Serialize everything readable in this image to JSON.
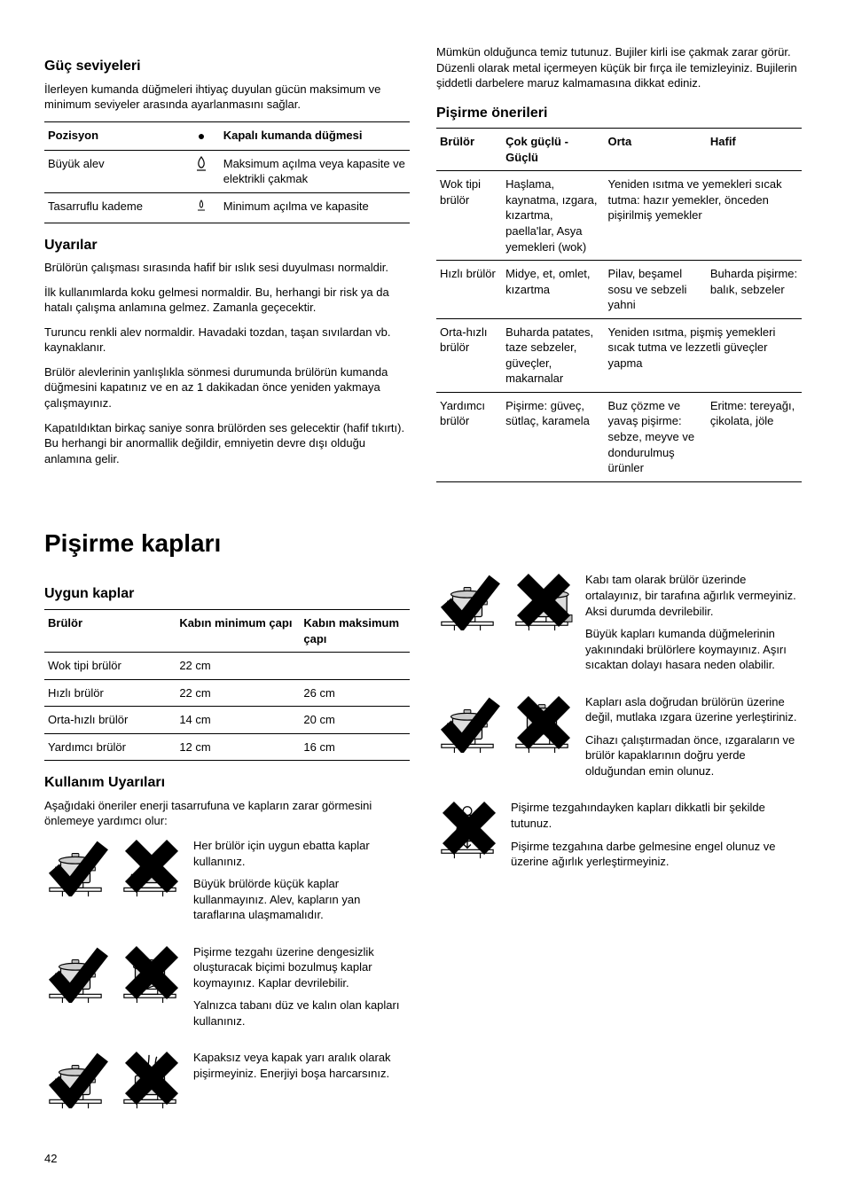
{
  "section1": {
    "heading": "Güç seviyeleri",
    "intro": "İlerleyen kumanda düğmeleri ihtiyaç duyulan gücün maksimum ve minimum seviyeler arasında ayarlanmasını sağlar.",
    "table": {
      "rows": [
        {
          "pos": "Pozisyon",
          "desc": "Kapalı kumanda düğmesi"
        },
        {
          "pos": "Büyük alev",
          "desc": "Maksimum açılma veya kapasite ve elektrikli çakmak"
        },
        {
          "pos": "Tasarruflu kademe",
          "desc": "Minimum açılma ve kapasite"
        }
      ]
    }
  },
  "warnings": {
    "heading": "Uyarılar",
    "items": [
      "Brülörün çalışması sırasında hafif bir ıslık sesi duyulması normaldir.",
      "İlk kullanımlarda koku gelmesi normaldir. Bu, herhangi bir risk ya da hatalı çalışma anlamına gelmez. Zamanla geçecektir.",
      "Turuncu renkli alev normaldir. Havadaki tozdan, taşan sıvılardan vb. kaynaklanır.",
      "Brülör alevlerinin yanlışlıkla sönmesi durumunda brülörün kumanda düğmesini kapatınız ve en az 1 dakikadan önce yeniden yakmaya çalışmayınız.",
      "Kapatıldıktan birkaç saniye sonra brülörden ses gelecektir (hafif tıkırtı). Bu herhangi bir anormallik değildir, emniyetin devre dışı olduğu anlamına gelir."
    ]
  },
  "clean": {
    "p": "Mümkün olduğunca temiz tutunuz. Bujiler kirli ise çakmak zarar görür. Düzenli olarak metal içermeyen küçük bir fırça ile temizleyiniz. Bujilerin şiddetli darbelere maruz kalmamasına dikkat ediniz."
  },
  "recommend": {
    "heading": "Pişirme önerileri",
    "headers": [
      "Brülör",
      "Çok güçlü - Güçlü",
      "Orta",
      "Hafif"
    ],
    "rows": [
      {
        "c1": "Wok tipi brülör",
        "c2": "Haşlama, kaynatma, ızgara, kızartma, paella'lar, Asya yemekleri (wok)",
        "c3": "Yeniden ısıtma ve yemekleri sıcak tutma: hazır yemekler, önceden pişirilmiş yemekler",
        "c4": "",
        "merge34": true
      },
      {
        "c1": "Hızlı brülör",
        "c2": "Midye, et, omlet, kızartma",
        "c3": "Pilav, beşamel sosu ve sebzeli yahni",
        "c4": "Buharda pişirme: balık, sebzeler"
      },
      {
        "c1": "Orta-hızlı brülör",
        "c2": "Buharda patates, taze sebzeler, güveçler, makarnalar",
        "c3": "Yeniden ısıtma, pişmiş yemekleri sıcak tutma ve lezzetli güveçler yapma",
        "c4": "",
        "merge34": true
      },
      {
        "c1": "Yardımcı brülör",
        "c2": "Pişirme: güveç, sütlaç, karamela",
        "c3": "Buz çözme ve yavaş pişirme: sebze, meyve ve dondurulmuş ürünler",
        "c4": "Eritme: tereyağı, çikolata, jöle"
      }
    ]
  },
  "cookware": {
    "heading": "Pişirme kapları",
    "sub1": "Uygun kaplar",
    "headers": [
      "Brülör",
      "Kabın minimum çapı",
      "Kabın maksimum çapı"
    ],
    "rows": [
      {
        "b": "Wok tipi brülör",
        "min": "22 cm",
        "max": ""
      },
      {
        "b": "Hızlı brülör",
        "min": "22 cm",
        "max": "26 cm"
      },
      {
        "b": "Orta-hızlı brülör",
        "min": "14 cm",
        "max": "20 cm"
      },
      {
        "b": "Yardımcı brülör",
        "min": "12 cm",
        "max": "16 cm"
      }
    ]
  },
  "usage": {
    "heading": "Kullanım Uyarıları",
    "intro": "Aşağıdaki öneriler enerji tasarrufuna ve kapların zarar görmesini önlemeye yardımcı olur:",
    "left": [
      {
        "p": [
          "Her brülör için uygun ebatta kaplar kullanınız.",
          "Büyük brülörde küçük kaplar kullanmayınız. Alev, kapların yan taraflarına ulaşmamalıdır."
        ]
      },
      {
        "p": [
          "Pişirme tezgahı üzerine dengesizlik oluşturacak biçimi bozulmuş kaplar koymayınız. Kaplar devrilebilir.",
          "Yalnızca tabanı düz ve kalın olan kapları kullanınız."
        ]
      },
      {
        "p": [
          "Kapaksız veya kapak yarı aralık olarak pişirmeyiniz. Enerjiyi boşa harcarsınız."
        ]
      }
    ],
    "right": [
      {
        "p": [
          "Kabı tam olarak brülör üzerinde ortalayınız, bir tarafına ağırlık vermeyiniz. Aksi durumda devrilebilir.",
          "Büyük kapları kumanda düğmelerinin yakınındaki brülörlere koymayınız. Aşırı sıcaktan dolayı hasara neden olabilir."
        ]
      },
      {
        "p": [
          "Kapları asla doğrudan brülörün üzerine değil, mutlaka ızgara üzerine yerleştiriniz.",
          "Cihazı çalıştırmadan önce, ızgaraların ve brülör kapaklarının doğru yerde olduğundan emin olunuz."
        ]
      },
      {
        "p": [
          "Pişirme tezgahındayken kapları dikkatli bir şekilde tutunuz.",
          "Pişirme tezgahına darbe gelmesine engel olunuz ve üzerine ağırlık yerleştirmeyiniz."
        ]
      }
    ]
  },
  "page": "42"
}
